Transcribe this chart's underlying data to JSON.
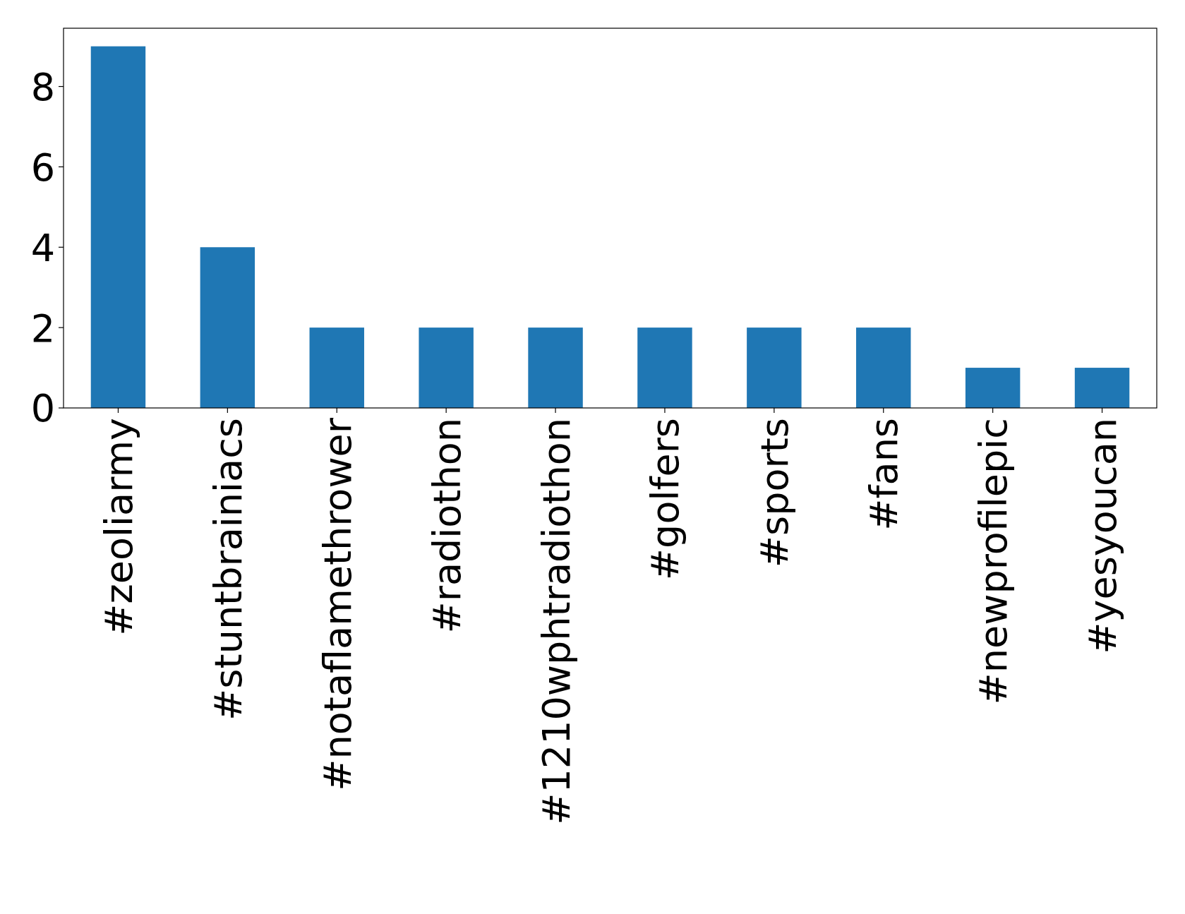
{
  "chart_data": {
    "type": "bar",
    "categories": [
      "#zeoliarmy",
      "#stuntbrainiacs",
      "#notaflamethrower",
      "#radiothon",
      "#1210wphtradiothon",
      "#golfers",
      "#sports",
      "#fans",
      "#newprofilepic",
      "#yesyoucan"
    ],
    "values": [
      9,
      4,
      2,
      2,
      2,
      2,
      2,
      2,
      1,
      1
    ],
    "color": "#1f77b4",
    "ylim": [
      0,
      9.45
    ],
    "yticks": [
      0,
      2,
      4,
      6,
      8
    ],
    "grid": false
  }
}
